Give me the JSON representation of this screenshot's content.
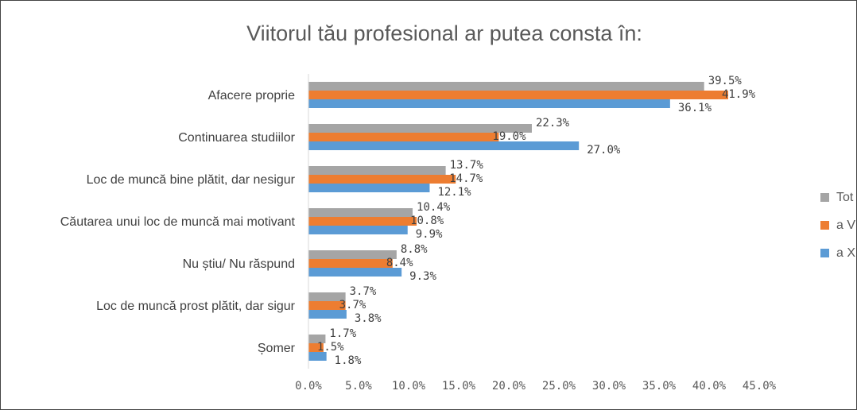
{
  "chart_data": {
    "type": "bar",
    "orientation": "horizontal",
    "title": "Viitorul tău profesional ar putea consta în:",
    "categories": [
      "Afacere proprie",
      "Continuarea studiilor",
      "Loc de muncă bine plătit, dar nesigur",
      "Căutarea unui loc de muncă mai motivant",
      "Nu știu/ Nu răspund",
      "Loc de muncă prost plătit, dar sigur",
      "Șomer"
    ],
    "series": [
      {
        "name": "Tot",
        "color": "#a5a5a5",
        "values": [
          39.5,
          22.3,
          13.7,
          10.4,
          8.8,
          3.7,
          1.7
        ],
        "labels": [
          "39.5%",
          "22.3%",
          "13.7%",
          "10.4%",
          "8.8%",
          "3.7%",
          "1.7%"
        ]
      },
      {
        "name": "a V",
        "color": "#ed7d31",
        "values": [
          41.9,
          19.0,
          14.7,
          10.8,
          8.4,
          3.7,
          1.5
        ],
        "labels": [
          "41.9%",
          "19.0%",
          "14.7%",
          "10.8%",
          "8.4%",
          "3.7%",
          "1.5%"
        ]
      },
      {
        "name": "a X",
        "color": "#5b9bd5",
        "values": [
          36.1,
          27.0,
          12.1,
          9.9,
          9.3,
          3.8,
          1.8
        ],
        "labels": [
          "36.1%",
          "27.0%",
          "12.1%",
          "9.9%",
          "9.3%",
          "3.8%",
          "1.8%"
        ]
      }
    ],
    "xlim": [
      0,
      45
    ],
    "x_ticks": [
      "0.0%",
      "5.0%",
      "10.0%",
      "15.0%",
      "20.0%",
      "25.0%",
      "30.0%",
      "35.0%",
      "40.0%",
      "45.0%"
    ],
    "grid": false,
    "legend": "right"
  }
}
